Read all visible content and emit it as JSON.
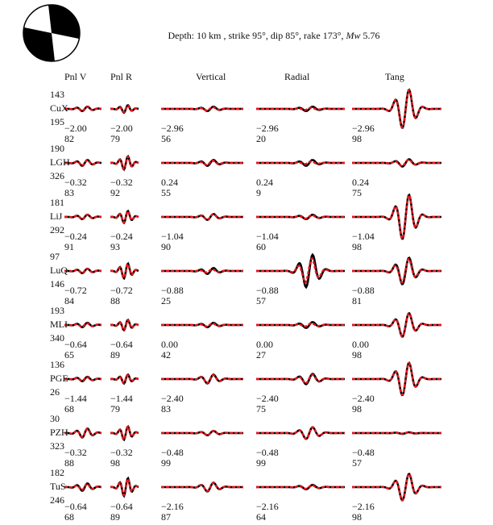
{
  "title": {
    "prefix": "Depth: 10 km , strike 95°,   dip 85°,   rake 173°,   ",
    "mw_label": "Mw",
    "mw_value": " 5.76"
  },
  "chart_data": {
    "type": "line",
    "description_of_marks": "observed (black solid) vs synthetic (red dashed) waveforms per station and component",
    "colors": {
      "observed": "#000000",
      "synthetic": "#e8141b"
    },
    "beachball": {
      "strike": 95,
      "dip": 85,
      "rake": 173,
      "fill": "#000000"
    },
    "components": [
      "Pnl V",
      "Pnl R",
      "Vertical",
      "Radial",
      "Tang"
    ],
    "stations": [
      {
        "azimuth": "143",
        "name": "CuX",
        "distance": "195",
        "shift": [
          "−2.00",
          "−2.00",
          "−2.96",
          "−2.96",
          "−2.96"
        ],
        "cc": [
          "82",
          "79",
          "56",
          "20",
          "98"
        ]
      },
      {
        "azimuth": "190",
        "name": "LGH",
        "distance": "326",
        "shift": [
          "−0.32",
          "−0.32",
          "0.24",
          "0.24",
          "0.24"
        ],
        "cc": [
          "83",
          "92",
          "55",
          "9",
          "75"
        ]
      },
      {
        "azimuth": "181",
        "name": "LiJ",
        "distance": "292",
        "shift": [
          "−0.24",
          "−0.24",
          "−1.04",
          "−1.04",
          "−1.04"
        ],
        "cc": [
          "91",
          "93",
          "90",
          "60",
          "98"
        ]
      },
      {
        "azimuth": "97",
        "name": "LuQ",
        "distance": "146",
        "shift": [
          "−0.72",
          "−0.72",
          "−0.88",
          "−0.88",
          "−0.88"
        ],
        "cc": [
          "84",
          "88",
          "25",
          "57",
          "81"
        ]
      },
      {
        "azimuth": "193",
        "name": "MLI",
        "distance": "340",
        "shift": [
          "−0.64",
          "−0.64",
          "0.00",
          "0.00",
          "0.00"
        ],
        "cc": [
          "65",
          "89",
          "42",
          "27",
          "98"
        ]
      },
      {
        "azimuth": "136",
        "name": "PGE",
        "distance": "26",
        "shift": [
          "−1.44",
          "−1.44",
          "−2.40",
          "−2.40",
          "−2.40"
        ],
        "cc": [
          "68",
          "79",
          "83",
          "75",
          "98"
        ]
      },
      {
        "azimuth": "30",
        "name": "PZH",
        "distance": "323",
        "shift": [
          "−0.32",
          "−0.32",
          "−0.48",
          "−0.48",
          "−0.48"
        ],
        "cc": [
          "88",
          "98",
          "99",
          "99",
          "57"
        ]
      },
      {
        "azimuth": "182",
        "name": "TuS",
        "distance": "246",
        "shift": [
          "−0.64",
          "−0.64",
          "−2.16",
          "−2.16",
          "−2.16"
        ],
        "cc": [
          "68",
          "89",
          "87",
          "64",
          "98"
        ]
      }
    ]
  }
}
